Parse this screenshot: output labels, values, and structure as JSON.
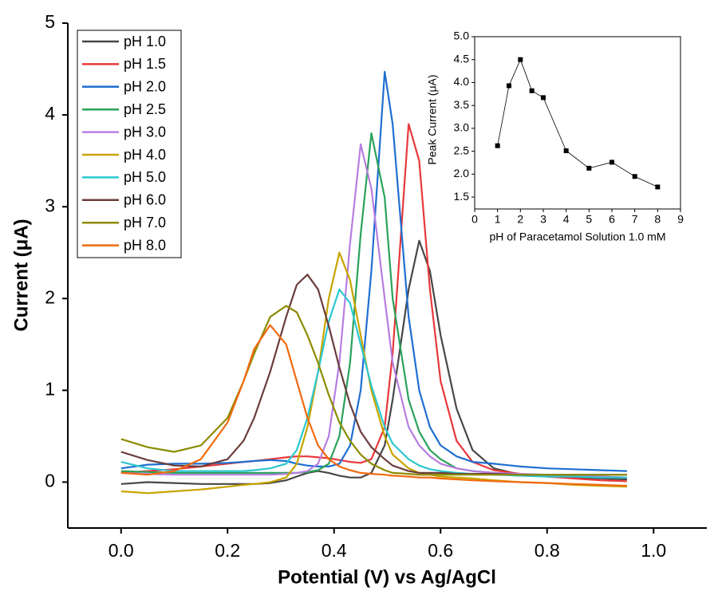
{
  "chart_data": [
    {
      "type": "line",
      "xlabel": "Potential (V) vs Ag/AgCl",
      "ylabel": "Current (μA)",
      "xlim": [
        -0.1,
        1.1
      ],
      "xticks": [
        {
          "value": 0,
          "label": "0.0"
        },
        0.2,
        0.4,
        0.6,
        0.8,
        {
          "value": 1,
          "label": "1.0"
        }
      ],
      "ylim": [
        -0.5,
        5
      ],
      "yticks": [
        0,
        1,
        2,
        3,
        4,
        5
      ],
      "legend": "upper left",
      "x": [
        0,
        0.05,
        0.1,
        0.15,
        0.2,
        0.23,
        0.25,
        0.28,
        0.31,
        0.33,
        0.35,
        0.37,
        0.39,
        0.41,
        0.43,
        0.45,
        0.47,
        0.495,
        0.51,
        0.54,
        0.56,
        0.58,
        0.6,
        0.63,
        0.66,
        0.7,
        0.75,
        0.8,
        0.85,
        0.9,
        0.95
      ],
      "series": [
        {
          "name": "pH 1.0",
          "color": "#474747",
          "values": [
            -0.02,
            0,
            -0.01,
            -0.02,
            -0.02,
            -0.02,
            -0.02,
            -0.01,
            0.02,
            0.06,
            0.1,
            0.12,
            0.1,
            0.07,
            0.05,
            0.05,
            0.1,
            0.4,
            0.9,
            2.1,
            2.63,
            2.3,
            1.6,
            0.8,
            0.35,
            0.15,
            0.08,
            0.06,
            0.05,
            0.04,
            0.03
          ]
        },
        {
          "name": "pH 1.5",
          "color": "#e8383b",
          "values": [
            0.1,
            0.12,
            0.14,
            0.17,
            0.2,
            0.22,
            0.23,
            0.25,
            0.27,
            0.28,
            0.28,
            0.27,
            0.26,
            0.24,
            0.22,
            0.21,
            0.25,
            0.6,
            1.4,
            3.9,
            3.5,
            2.1,
            1.1,
            0.45,
            0.22,
            0.13,
            0.09,
            0.06,
            0.04,
            0.02,
            0.01
          ]
        },
        {
          "name": "pH 2.0",
          "color": "#1f6fd1",
          "values": [
            0.15,
            0.19,
            0.2,
            0.2,
            0.21,
            0.22,
            0.23,
            0.24,
            0.23,
            0.2,
            0.18,
            0.17,
            0.17,
            0.2,
            0.4,
            1.0,
            2.3,
            4.47,
            3.9,
            1.8,
            1.0,
            0.6,
            0.4,
            0.28,
            0.22,
            0.2,
            0.17,
            0.15,
            0.14,
            0.13,
            0.12
          ]
        },
        {
          "name": "pH 2.5",
          "color": "#2aa25a",
          "values": [
            0.12,
            0.11,
            0.1,
            0.1,
            0.1,
            0.1,
            0.1,
            0.1,
            0.1,
            0.1,
            0.11,
            0.13,
            0.2,
            0.5,
            1.3,
            2.7,
            3.8,
            3.1,
            2.0,
            0.9,
            0.55,
            0.35,
            0.25,
            0.15,
            0.12,
            0.1,
            0.08,
            0.07,
            0.07,
            0.06,
            0.05
          ]
        },
        {
          "name": "pH 3.0",
          "color": "#b77ee0",
          "values": [
            0.1,
            0.09,
            0.08,
            0.08,
            0.08,
            0.08,
            0.08,
            0.08,
            0.09,
            0.1,
            0.12,
            0.2,
            0.5,
            1.3,
            2.6,
            3.68,
            3.2,
            2.0,
            1.3,
            0.6,
            0.4,
            0.28,
            0.2,
            0.15,
            0.12,
            0.1,
            0.09,
            0.08,
            0.07,
            0.06,
            0.05
          ]
        },
        {
          "name": "pH 4.0",
          "color": "#c8a400",
          "values": [
            -0.1,
            -0.12,
            -0.1,
            -0.08,
            -0.05,
            -0.03,
            -0.02,
            0,
            0.05,
            0.2,
            0.6,
            1.2,
            2.0,
            2.5,
            2.2,
            1.6,
            1.0,
            0.5,
            0.3,
            0.15,
            0.1,
            0.08,
            0.06,
            0.05,
            0.04,
            0.02,
            0,
            -0.01,
            -0.03,
            -0.04,
            -0.05
          ]
        },
        {
          "name": "pH 5.0",
          "color": "#2cc7cf",
          "values": [
            0.22,
            0.15,
            0.12,
            0.12,
            0.12,
            0.12,
            0.13,
            0.15,
            0.2,
            0.35,
            0.7,
            1.2,
            1.75,
            2.1,
            1.95,
            1.5,
            1.05,
            0.6,
            0.42,
            0.25,
            0.18,
            0.14,
            0.12,
            0.1,
            0.09,
            0.08,
            0.07,
            0.06,
            0.06,
            0.05,
            0.05
          ]
        },
        {
          "name": "pH 6.0",
          "color": "#6b3d3b",
          "values": [
            0.33,
            0.24,
            0.18,
            0.17,
            0.25,
            0.45,
            0.7,
            1.2,
            1.8,
            2.15,
            2.26,
            2.1,
            1.7,
            1.25,
            0.85,
            0.55,
            0.38,
            0.25,
            0.18,
            0.12,
            0.1,
            0.1,
            0.1,
            0.09,
            0.09,
            0.09,
            0.08,
            0.08,
            0.08,
            0.08,
            0.08
          ]
        },
        {
          "name": "pH 7.0",
          "color": "#8c8c00",
          "values": [
            0.47,
            0.38,
            0.33,
            0.4,
            0.7,
            1.1,
            1.4,
            1.8,
            1.92,
            1.85,
            1.6,
            1.3,
            0.95,
            0.65,
            0.45,
            0.3,
            0.2,
            0.13,
            0.1,
            0.09,
            0.08,
            0.08,
            0.08,
            0.08,
            0.08,
            0.08,
            0.08,
            0.08,
            0.08,
            0.08,
            0.08
          ]
        },
        {
          "name": "pH 8.0",
          "color": "#f06a10",
          "values": [
            0.1,
            0.08,
            0.12,
            0.25,
            0.65,
            1.1,
            1.45,
            1.71,
            1.5,
            1.1,
            0.7,
            0.4,
            0.25,
            0.17,
            0.13,
            0.1,
            0.09,
            0.08,
            0.07,
            0.06,
            0.05,
            0.05,
            0.04,
            0.03,
            0.02,
            0.01,
            0,
            -0.01,
            -0.02,
            -0.03,
            -0.04
          ]
        }
      ]
    },
    {
      "type": "line",
      "xlabel": "pH of Paracetamol Solution 1.0 mM",
      "ylabel": "Peak Current (μA)",
      "xlim": [
        0,
        9
      ],
      "xticks": [
        0,
        1,
        2,
        3,
        4,
        5,
        6,
        7,
        8,
        9
      ],
      "ylim": [
        1.24,
        5
      ],
      "yticks": [
        1.5,
        {
          "value": 2,
          "label": "2.0"
        },
        2.5,
        {
          "value": 3,
          "label": "3.0"
        },
        3.5,
        {
          "value": 4,
          "label": "4.0"
        },
        4.5,
        {
          "value": 5,
          "label": "5.0"
        }
      ],
      "x": [
        1,
        1.5,
        2,
        2.5,
        3,
        4,
        5,
        6,
        7,
        8
      ],
      "series": [
        {
          "color": "#000000",
          "marker": "square",
          "values": [
            2.62,
            3.93,
            4.5,
            3.82,
            3.67,
            2.51,
            2.13,
            2.26,
            1.95,
            1.72
          ]
        }
      ]
    }
  ]
}
